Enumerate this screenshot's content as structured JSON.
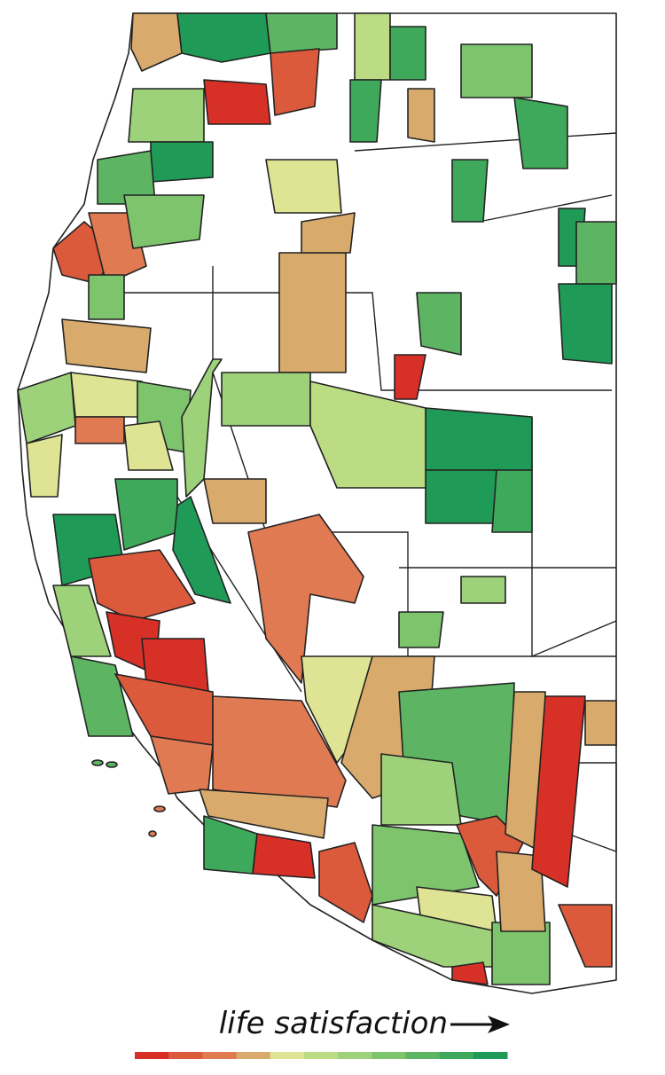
{
  "legend": {
    "title": "life satisfaction",
    "colors": [
      "#d73027",
      "#dc5a3c",
      "#df7a52",
      "#d8ab6c",
      "#dfe494",
      "#bcdc84",
      "#9dd17a",
      "#7dc46d",
      "#5db563",
      "#3ea95b",
      "#1f9b57"
    ]
  }
}
